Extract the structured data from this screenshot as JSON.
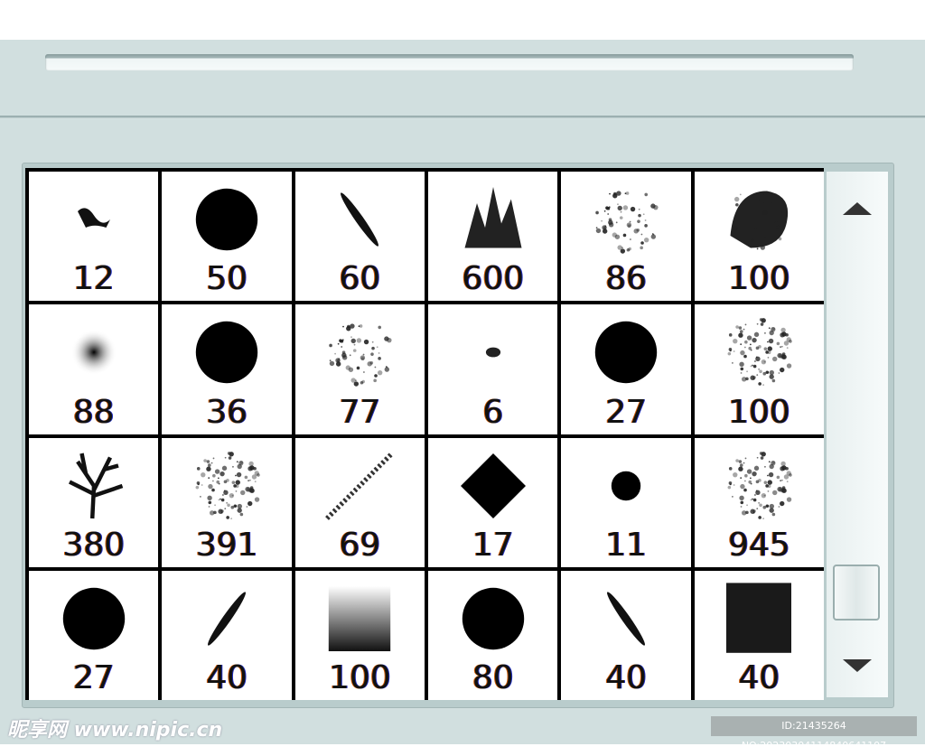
{
  "brushes": [
    {
      "size": "12",
      "icon": "scribble"
    },
    {
      "size": "50",
      "icon": "hard-round"
    },
    {
      "size": "60",
      "icon": "line-slant"
    },
    {
      "size": "600",
      "icon": "grass"
    },
    {
      "size": "86",
      "icon": "scatter"
    },
    {
      "size": "100",
      "icon": "chalk"
    },
    {
      "size": "88",
      "icon": "soft-round"
    },
    {
      "size": "36",
      "icon": "hard-round"
    },
    {
      "size": "77",
      "icon": "scatter"
    },
    {
      "size": "6",
      "icon": "dot-small"
    },
    {
      "size": "27",
      "icon": "hard-round"
    },
    {
      "size": "100",
      "icon": "spatter"
    },
    {
      "size": "380",
      "icon": "tree"
    },
    {
      "size": "391",
      "icon": "spatter"
    },
    {
      "size": "69",
      "icon": "dotted-line"
    },
    {
      "size": "17",
      "icon": "diamond"
    },
    {
      "size": "11",
      "icon": "dot-medium"
    },
    {
      "size": "945",
      "icon": "spatter"
    },
    {
      "size": "27",
      "icon": "hard-round"
    },
    {
      "size": "40",
      "icon": "line-slant-rev"
    },
    {
      "size": "100",
      "icon": "gradient-square"
    },
    {
      "size": "80",
      "icon": "hard-round"
    },
    {
      "size": "40",
      "icon": "line-slant"
    },
    {
      "size": "40",
      "icon": "rough-square"
    }
  ],
  "scrollbar": {
    "up_icon": "arrow-up-icon",
    "down_icon": "arrow-down-icon"
  },
  "watermark": {
    "text": "昵享网 www.nipic.cn",
    "id": "ID:21435264 NO:20230304114840641107"
  }
}
